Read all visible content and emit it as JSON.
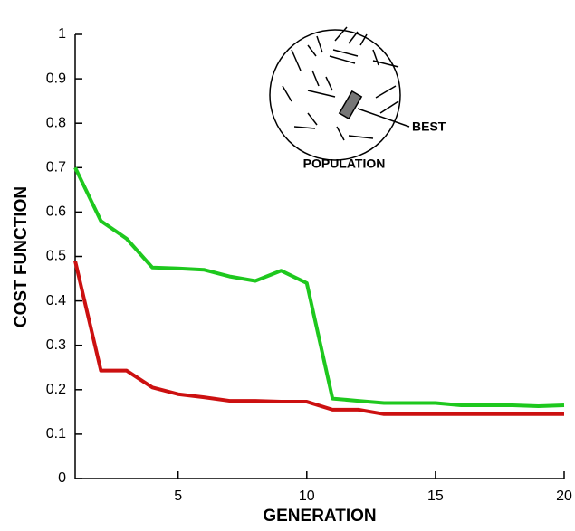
{
  "chart_data": {
    "type": "line",
    "x_label": "GENERATION",
    "y_label": "COST FUNCTION",
    "x": [
      1,
      2,
      3,
      4,
      5,
      6,
      7,
      8,
      9,
      10,
      11,
      12,
      13,
      14,
      15,
      16,
      17,
      18,
      19,
      20
    ],
    "series": [
      {
        "color": "#1ec81e",
        "values": [
          0.7,
          0.58,
          0.54,
          0.475,
          0.473,
          0.47,
          0.455,
          0.445,
          0.468,
          0.44,
          0.18,
          0.175,
          0.17,
          0.17,
          0.17,
          0.165,
          0.165,
          0.165,
          0.163,
          0.165
        ]
      },
      {
        "color": "#cc1010",
        "values": [
          0.49,
          0.243,
          0.243,
          0.205,
          0.19,
          0.183,
          0.175,
          0.175,
          0.173,
          0.173,
          0.155,
          0.155,
          0.145,
          0.145,
          0.145,
          0.145,
          0.145,
          0.145,
          0.145,
          0.145
        ]
      }
    ],
    "xlim": [
      1,
      20
    ],
    "xticks": [
      5,
      10,
      15,
      20
    ],
    "ylim": [
      0,
      1
    ],
    "yticks": [
      0,
      0.1,
      0.2,
      0.3,
      0.4,
      0.5,
      0.6,
      0.7,
      0.8,
      0.9,
      1
    ],
    "annotations": [
      "BEST",
      "POPULATION"
    ]
  }
}
